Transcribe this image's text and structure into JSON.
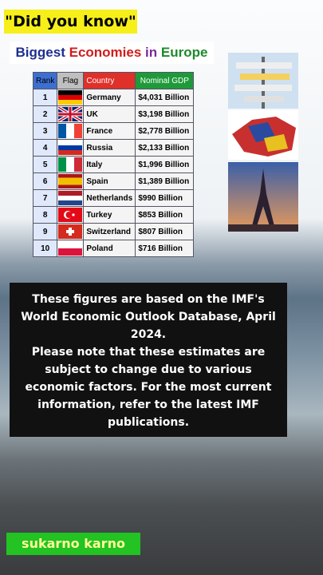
{
  "header": {
    "badge": "\"Did you know\"",
    "title": [
      "Biggest",
      "Economies",
      "in",
      "Europe"
    ]
  },
  "table": {
    "columns": [
      "Rank",
      "Flag",
      "Country",
      "Nominal GDP"
    ],
    "rows": [
      [
        1,
        "Germany",
        "$4,031 Billion"
      ],
      [
        2,
        "UK",
        "$3,198 Billion"
      ],
      [
        3,
        "France",
        "$2,778 Billion"
      ],
      [
        4,
        "Russia",
        "$2,133 Billion"
      ],
      [
        5,
        "Italy",
        "$1,996 Billion"
      ],
      [
        6,
        "Spain",
        "$1,389 Billion"
      ],
      [
        7,
        "Netherlands",
        "$990 Billion"
      ],
      [
        8,
        "Turkey",
        "$853 Billion"
      ],
      [
        9,
        "Switzerland",
        "$807 Billion"
      ],
      [
        10,
        "Poland",
        "$716 Billion"
      ]
    ]
  },
  "note": [
    "These figures are based on the IMF's World Economic Outlook Database, April 2024.",
    "Please note that these estimates are subject to change due to various economic factors. For the most current information, refer to the latest IMF publications."
  ],
  "footer": {
    "author": "sukarno karno"
  }
}
